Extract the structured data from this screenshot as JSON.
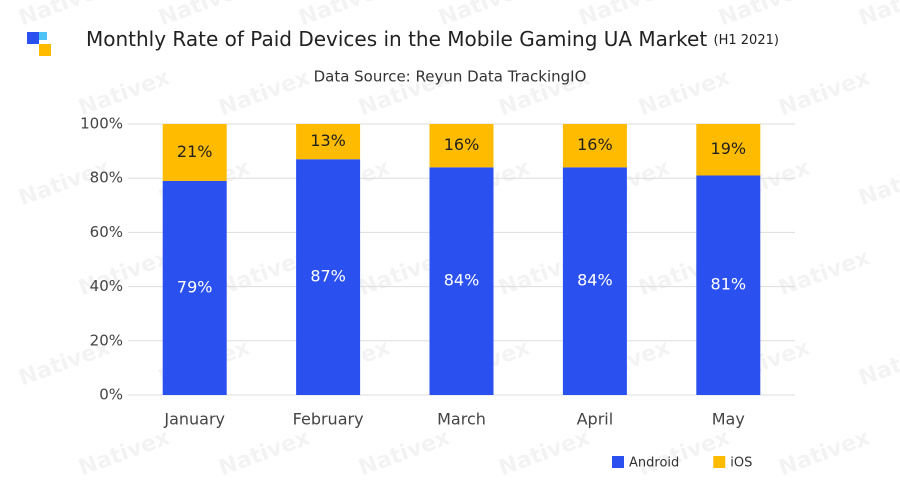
{
  "chart_data": {
    "type": "stacked_bar",
    "title": "Monthly Rate of Paid Devices in the Mobile Gaming UA Market",
    "title_note": "(H1 2021)",
    "subtitle": "Data Source: Reyun Data TrackingIO",
    "watermark": "Nativex",
    "categories": [
      "January",
      "February",
      "March",
      "April",
      "May"
    ],
    "series": [
      {
        "name": "Android",
        "color": "#2b50f0",
        "values": [
          79,
          87,
          84,
          84,
          81
        ],
        "value_labels": [
          "79%",
          "87%",
          "84%",
          "84%",
          "81%"
        ]
      },
      {
        "name": "iOS",
        "color": "#ffbb00",
        "values": [
          21,
          13,
          16,
          16,
          19
        ],
        "value_labels": [
          "21%",
          "13%",
          "16%",
          "16%",
          "19%"
        ]
      }
    ],
    "ylim": [
      0,
      100
    ],
    "yticks": [
      {
        "value": 0,
        "label": "0%"
      },
      {
        "value": 20,
        "label": "20%"
      },
      {
        "value": 40,
        "label": "40%"
      },
      {
        "value": 60,
        "label": "60%"
      },
      {
        "value": 80,
        "label": "80%"
      },
      {
        "value": 100,
        "label": "100%"
      }
    ],
    "grid": true,
    "legend": "bottom-right"
  }
}
